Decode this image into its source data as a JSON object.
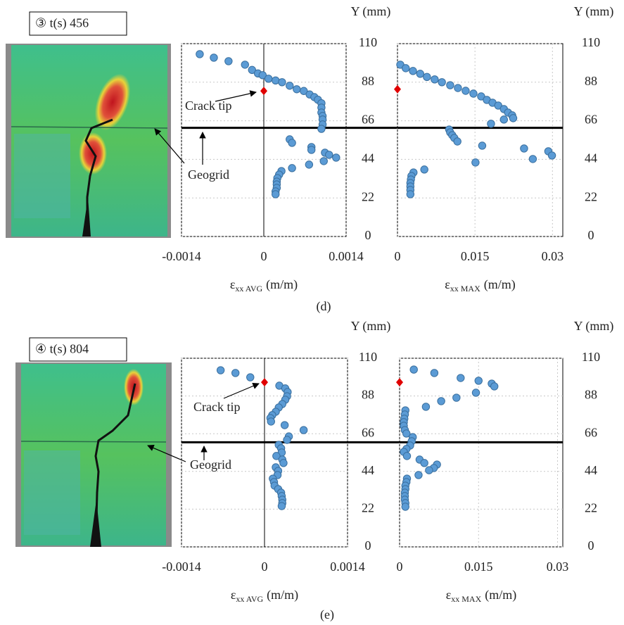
{
  "panels": [
    {
      "label": "(d)",
      "time": "③ t(s) 456"
    },
    {
      "label": "(e)",
      "time": "④ t(s) 804"
    }
  ],
  "chart_data": [
    {
      "type": "scatter",
      "x_label": [
        "ε",
        "xx AVG",
        "(m/m)"
      ],
      "y_label": "Y (mm)",
      "xlim": [
        -0.0014,
        0.0014
      ],
      "ylim": [
        0,
        110
      ],
      "xticks": [
        -0.0014,
        0,
        0.0014
      ],
      "yticks": [
        0,
        22,
        44,
        66,
        88,
        110
      ],
      "grid": true,
      "vlines": [
        0
      ],
      "hlines": [
        62
      ],
      "annotations": [
        "Crack tip",
        "Geogrid"
      ],
      "series": [
        {
          "color": "#5b9bd5",
          "x": [
            -0.00109,
            -0.00085,
            -0.0006,
            -0.00032,
            -0.0002,
            -0.0001,
            -2e-05,
            8e-05,
            0.0002,
            0.00031,
            0.00044,
            0.00056,
            0.00068,
            0.00078,
            0.00086,
            0.00092,
            0.00098,
            0.00098,
            0.00098,
            0.001,
            0.001,
            0.001,
            0.00098,
            0.00044,
            0.00048,
            0.00081,
            0.00081,
            0.00104,
            0.00111,
            0.00123,
            0.00102,
            0.00077,
            0.00048,
            0.0003,
            0.00026,
            0.00023,
            0.00022,
            0.00022,
            0.00022,
            0.0002,
            0.0002
          ],
          "values": [
            104,
            102,
            100,
            98,
            95,
            93,
            92,
            90,
            89,
            88,
            86,
            84,
            83,
            81,
            79.5,
            78,
            76,
            73.5,
            70.7,
            68.7,
            66.7,
            63.9,
            61.4,
            55.4,
            53.4,
            51,
            49.4,
            47.8,
            46.6,
            45,
            43,
            41,
            39,
            37.3,
            35.3,
            33.3,
            31.3,
            29.7,
            27.7,
            25.7,
            24.1
          ]
        },
        {
          "color": "#e00000",
          "marker": "diamond",
          "x": [
            0
          ],
          "values": [
            83
          ]
        }
      ]
    },
    {
      "type": "scatter",
      "x_label": [
        "ε",
        "xx MAX",
        "(m/m)"
      ],
      "y_label": "Y (mm)",
      "xlim": [
        0,
        0.032
      ],
      "ylim": [
        0,
        110
      ],
      "xticks": [
        0,
        0.015,
        0.03
      ],
      "yticks": [
        0,
        22,
        44,
        66,
        88,
        110
      ],
      "grid": true,
      "hlines": [
        62
      ],
      "series": [
        {
          "color": "#5b9bd5",
          "x": [
            0.00055,
            0.0016,
            0.003,
            0.0044,
            0.0057,
            0.0072,
            0.0086,
            0.0102,
            0.0117,
            0.0132,
            0.0147,
            0.0162,
            0.0173,
            0.0184,
            0.0195,
            0.0206,
            0.0214,
            0.0222,
            0.0224,
            0.0206,
            0.0181,
            0.01,
            0.0102,
            0.0106,
            0.011,
            0.0116,
            0.0164,
            0.0245,
            0.0292,
            0.0299,
            0.0262,
            0.0151,
            0.0052,
            0.0031,
            0.0027,
            0.0026,
            0.0025,
            0.0025,
            0.0025,
            0.0025
          ],
          "values": [
            98,
            96,
            94.4,
            92.8,
            91,
            89.6,
            88,
            86.3,
            84.7,
            83.1,
            81.5,
            79.9,
            77.9,
            76.3,
            74.7,
            72.7,
            70.7,
            69.1,
            67.5,
            66.7,
            64.3,
            61,
            59.4,
            57.8,
            56.2,
            54.2,
            51.8,
            50.2,
            48.6,
            46.2,
            44.2,
            42.2,
            38.2,
            36.5,
            34.5,
            32.5,
            30.5,
            28.5,
            26.5,
            24.1
          ]
        },
        {
          "color": "#e00000",
          "marker": "diamond",
          "x": [
            0
          ],
          "values": [
            84
          ]
        }
      ]
    },
    {
      "type": "scatter",
      "x_label": [
        "ε",
        "xx AVG",
        "(m/m)"
      ],
      "y_label": "Y (mm)",
      "xlim": [
        -0.0014,
        0.0014
      ],
      "ylim": [
        0,
        110
      ],
      "xticks": [
        -0.0014,
        0,
        0.0014
      ],
      "yticks": [
        0,
        22,
        44,
        66,
        88,
        110
      ],
      "grid": true,
      "vlines": [
        0
      ],
      "hlines": [
        61
      ],
      "annotations": [
        "Crack tip",
        "Geogrid"
      ],
      "series": [
        {
          "color": "#5b9bd5",
          "x": [
            -0.00074,
            -0.00049,
            -0.00024,
            0.00025,
            0.00035,
            0.00039,
            0.00038,
            0.00035,
            0.0003,
            0.00024,
            0.00019,
            0.00013,
            0.0001,
            0.00011,
            0.00034,
            0.00066,
            0.00041,
            0.00038,
            0.00024,
            0.00028,
            0.00029,
            0.0002,
            0.0003,
            0.00032,
            0.00019,
            0.00023,
            0.00022,
            0.00014,
            0.00016,
            0.00017,
            0.00023,
            0.00028,
            0.00029,
            0.0003,
            0.0003,
            0.00029
          ],
          "values": [
            103,
            101.4,
            98.9,
            94,
            92.4,
            90.3,
            87.8,
            85.8,
            83.3,
            81.3,
            78.8,
            76.8,
            75.1,
            73.1,
            71,
            68.1,
            64.4,
            62.4,
            59.5,
            57.5,
            55,
            53,
            50.9,
            48.9,
            46.4,
            44.3,
            41.9,
            39.8,
            37.8,
            35.7,
            33.7,
            31.6,
            29.6,
            27.5,
            25.5,
            23.8
          ]
        },
        {
          "color": "#e00000",
          "marker": "diamond",
          "x": [
            0
          ],
          "values": [
            96
          ]
        }
      ]
    },
    {
      "type": "scatter",
      "x_label": [
        "ε",
        "xx MAX",
        "(m/m)"
      ],
      "y_label": "Y (mm)",
      "xlim": [
        0,
        0.031
      ],
      "ylim": [
        0,
        110
      ],
      "xticks": [
        0,
        0.015,
        0.03
      ],
      "yticks": [
        0,
        22,
        44,
        66,
        88,
        110
      ],
      "grid": true,
      "hlines": [
        61
      ],
      "series": [
        {
          "color": "#5b9bd5",
          "x": [
            0.0027,
            0.0066,
            0.0116,
            0.015,
            0.0175,
            0.018,
            0.0145,
            0.0108,
            0.0079,
            0.005,
            0.0011,
            0.001,
            0.0009,
            0.0008,
            0.0008,
            0.001,
            0.0013,
            0.0025,
            0.0023,
            0.002,
            0.0013,
            0.0008,
            0.0014,
            0.0038,
            0.0047,
            0.0071,
            0.0065,
            0.0056,
            0.0036,
            0.0014,
            0.0013,
            0.0011,
            0.0011,
            0.001,
            0.001,
            0.001,
            0.0011,
            0.0011
          ],
          "values": [
            103.4,
            101.4,
            98.5,
            96.9,
            95.2,
            93.6,
            89.9,
            87,
            85,
            81.7,
            79.6,
            77.2,
            74.7,
            72.7,
            70.6,
            68.1,
            66.1,
            64,
            61.6,
            59.1,
            57.1,
            55.4,
            53,
            50.9,
            48.9,
            48,
            46,
            44.7,
            41.9,
            39.8,
            37.8,
            35.7,
            33.7,
            31.6,
            29.6,
            27.5,
            25.5,
            23.4
          ]
        },
        {
          "color": "#e00000",
          "marker": "diamond",
          "x": [
            0
          ],
          "values": [
            96
          ]
        }
      ]
    }
  ]
}
